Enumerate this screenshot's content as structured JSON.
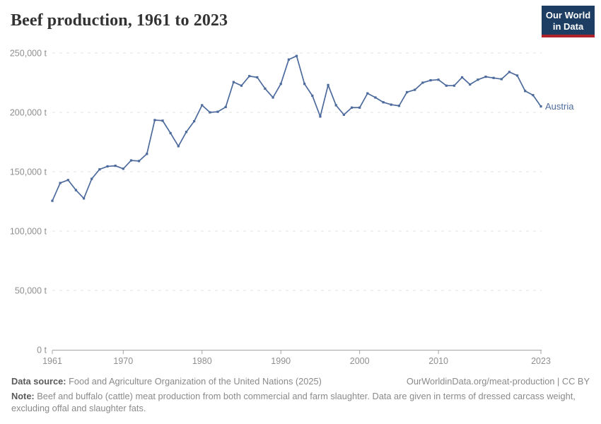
{
  "header": {
    "title": "Beef production, 1961 to 2023",
    "logo": {
      "line1": "Our World",
      "line2": "in Data"
    }
  },
  "chart_data": {
    "type": "line",
    "title": "Beef production, 1961 to 2023",
    "entity": "Austria",
    "unit": "t",
    "xlim": [
      1961,
      2023
    ],
    "ylim": [
      0,
      250000
    ],
    "grid": "horizontal-dashed",
    "legend_position": "end-of-line-label",
    "x": [
      1961,
      1962,
      1963,
      1964,
      1965,
      1966,
      1967,
      1968,
      1969,
      1970,
      1971,
      1972,
      1973,
      1974,
      1975,
      1976,
      1977,
      1978,
      1979,
      1980,
      1981,
      1982,
      1983,
      1984,
      1985,
      1986,
      1987,
      1988,
      1989,
      1990,
      1991,
      1992,
      1993,
      1994,
      1995,
      1996,
      1997,
      1998,
      1999,
      2000,
      2001,
      2002,
      2003,
      2004,
      2005,
      2006,
      2007,
      2008,
      2009,
      2010,
      2011,
      2012,
      2013,
      2014,
      2015,
      2016,
      2017,
      2018,
      2019,
      2020,
      2021,
      2022,
      2023
    ],
    "series": [
      {
        "name": "Austria",
        "color": "#4c6a9c",
        "values": [
          125500,
          140500,
          143000,
          134500,
          127500,
          144000,
          152000,
          154500,
          155000,
          152500,
          159500,
          159000,
          165000,
          193500,
          193000,
          182500,
          171500,
          183500,
          192500,
          206000,
          200000,
          200500,
          204500,
          225500,
          222500,
          230500,
          229500,
          220000,
          212500,
          224000,
          244500,
          247500,
          224000,
          214000,
          196500,
          223000,
          206000,
          198000,
          204000,
          204000,
          216000,
          212500,
          208500,
          206500,
          205500,
          217000,
          219000,
          225000,
          227000,
          227500,
          222500,
          222500,
          229500,
          223500,
          227500,
          230000,
          229000,
          228000,
          234000,
          231000,
          218000,
          214500,
          205000
        ]
      }
    ],
    "y_ticks": [
      {
        "value": 0,
        "label": "0 t"
      },
      {
        "value": 50000,
        "label": "50,000 t"
      },
      {
        "value": 100000,
        "label": "100,000 t"
      },
      {
        "value": 150000,
        "label": "150,000 t"
      },
      {
        "value": 200000,
        "label": "200,000 t"
      },
      {
        "value": 250000,
        "label": "250,000 t"
      }
    ],
    "x_ticks": [
      {
        "value": 1961,
        "label": "1961"
      },
      {
        "value": 1970,
        "label": "1970"
      },
      {
        "value": 1980,
        "label": "1980"
      },
      {
        "value": 1990,
        "label": "1990"
      },
      {
        "value": 2000,
        "label": "2000"
      },
      {
        "value": 2010,
        "label": "2010"
      },
      {
        "value": 2023,
        "label": "2023"
      }
    ]
  },
  "footer": {
    "data_source_label": "Data source:",
    "data_source_text": " Food and Agriculture Organization of the United Nations (2025)",
    "link_text": "OurWorldinData.org/meat-production | CC BY",
    "note_label": "Note:",
    "note_text": " Beef and buffalo (cattle) meat production from both commercial and farm slaughter. Data are given in terms of dressed carcass weight, excluding offal and slaughter fats."
  },
  "colors": {
    "line": "#4c6a9c",
    "entity_label": "#4c6a9c",
    "gridline": "#e0e0e0",
    "axis": "#a5a5a5",
    "tick_label": "#8f8f8f",
    "logo_bg": "#1d3d63",
    "logo_accent": "#b0232a",
    "title": "#333333"
  }
}
